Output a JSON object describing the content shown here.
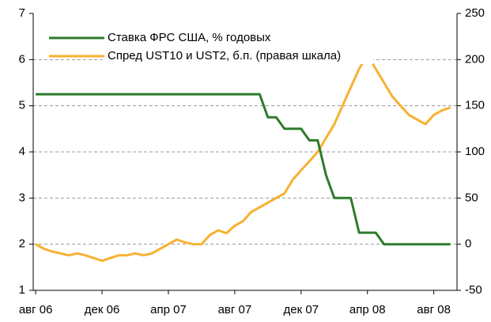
{
  "chart_data": {
    "type": "line",
    "x": [
      0,
      0.5,
      1,
      1.5,
      2,
      2.5,
      3,
      3.5,
      4,
      4.5,
      5,
      5.5,
      6,
      6.5,
      7,
      7.5,
      8,
      8.5,
      9,
      9.5,
      10,
      10.5,
      11,
      11.5,
      12,
      12.5,
      13,
      13.5,
      14,
      14.5,
      15,
      15.5,
      16,
      16.5,
      17,
      17.5,
      18,
      18.5,
      19,
      19.5,
      20,
      20.5,
      21,
      21.5,
      22,
      22.5,
      23,
      23.5,
      24,
      24.5,
      25
    ],
    "xlim": [
      -0.15,
      25.4
    ],
    "xticks": [
      {
        "value": 0,
        "label": "авг 06"
      },
      {
        "value": 4,
        "label": "дек 06"
      },
      {
        "value": 8,
        "label": "апр 07"
      },
      {
        "value": 12,
        "label": "авг 07"
      },
      {
        "value": 16,
        "label": "дек 07"
      },
      {
        "value": 20,
        "label": "апр 08"
      },
      {
        "value": 24,
        "label": "авг 08"
      }
    ],
    "ylim": [
      1,
      7
    ],
    "yticks": [
      1,
      2,
      3,
      4,
      5,
      6,
      7
    ],
    "y2lim": [
      -50,
      250
    ],
    "y2ticks": [
      -50,
      0,
      50,
      100,
      150,
      200,
      250
    ],
    "grid": true,
    "legend": "top-left",
    "series": [
      {
        "name": "Ставка ФРС США, % годовых",
        "color": "#2e7b2b",
        "values": [
          5.25,
          5.25,
          5.25,
          5.25,
          5.25,
          5.25,
          5.25,
          5.25,
          5.25,
          5.25,
          5.25,
          5.25,
          5.25,
          5.25,
          5.25,
          5.25,
          5.25,
          5.25,
          5.25,
          5.25,
          5.25,
          5.25,
          5.25,
          5.25,
          5.25,
          5.25,
          5.25,
          5.25,
          4.75,
          4.75,
          4.5,
          4.5,
          4.5,
          4.25,
          4.25,
          3.5,
          3,
          3,
          3,
          2.25,
          2.25,
          2.25,
          2,
          2,
          2,
          2,
          2,
          2,
          2,
          2,
          2
        ]
      },
      {
        "name": "Спред UST10 и UST2, б.п. (правая шкала)",
        "color": "#f7b132",
        "axis": "y2",
        "values": [
          0,
          -5,
          -8,
          -10,
          -12,
          -10,
          -12,
          -15,
          -18,
          -15,
          -12,
          -12,
          -10,
          -12,
          -10,
          -5,
          0,
          5,
          2,
          0,
          0,
          10,
          15,
          12,
          20,
          25,
          35,
          40,
          45,
          50,
          55,
          70,
          80,
          90,
          100,
          115,
          130,
          150,
          170,
          190,
          205,
          190,
          175,
          160,
          150,
          140,
          135,
          130,
          140,
          145,
          148
        ]
      }
    ]
  }
}
